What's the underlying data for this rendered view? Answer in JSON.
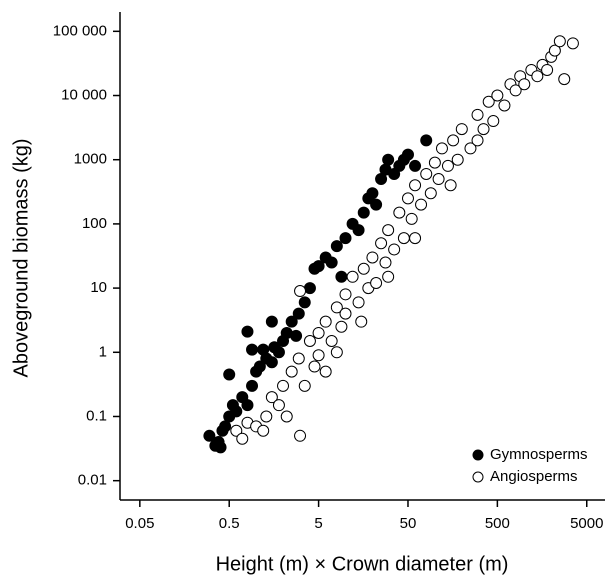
{
  "chart_data": {
    "type": "scatter",
    "xlabel": "Height (m) × Crown diameter (m)",
    "ylabel": "Aboveground biomass (kg)",
    "xscale": "log",
    "yscale": "log",
    "xlim": [
      0.03,
      8000
    ],
    "ylim": [
      0.005,
      200000
    ],
    "xticks": [
      0.05,
      0.5,
      5,
      50,
      500,
      5000
    ],
    "yticks": [
      0.01,
      0.1,
      1,
      10,
      100,
      1000,
      {
        "value": 10000,
        "label": "10 000"
      },
      {
        "value": 100000,
        "label": "100 000"
      }
    ],
    "legend": "lower right",
    "series": [
      {
        "name": "Gymnosperms",
        "color": "#000000",
        "x": [
          0.3,
          0.35,
          0.38,
          0.4,
          0.42,
          0.45,
          0.5,
          0.5,
          0.55,
          0.6,
          0.7,
          0.8,
          0.9,
          1,
          1.1,
          1.2,
          1.3,
          1.5,
          1.6,
          1.8,
          2,
          2.2,
          2.5,
          2.8,
          3,
          3.5,
          4,
          4.5,
          5,
          6,
          7,
          8,
          9,
          10,
          12,
          14,
          16,
          18,
          20,
          22,
          25,
          28,
          30,
          35,
          40,
          45,
          50,
          60,
          80,
          1.5,
          0.9,
          0.8
        ],
        "values": [
          0.05,
          0.035,
          0.04,
          0.033,
          0.06,
          0.07,
          0.1,
          0.45,
          0.15,
          0.12,
          0.2,
          0.15,
          0.3,
          0.5,
          0.6,
          1.1,
          0.8,
          0.7,
          1.2,
          1,
          1.5,
          2,
          3,
          1.8,
          4,
          6,
          10,
          20,
          22,
          30,
          25,
          45,
          15,
          60,
          100,
          80,
          150,
          250,
          300,
          200,
          500,
          700,
          1000,
          600,
          800,
          1000,
          1200,
          800,
          2000,
          3,
          1.1,
          2.1
        ]
      },
      {
        "name": "Angiosperms",
        "color": "#ffffff",
        "x": [
          0.6,
          0.7,
          0.8,
          1,
          1.2,
          1.3,
          1.5,
          1.8,
          2,
          2.2,
          2.5,
          3.1,
          3,
          3.5,
          4,
          4.5,
          5,
          5,
          6,
          7,
          8,
          9,
          10,
          10,
          12,
          14,
          16,
          18,
          20,
          22,
          25,
          28,
          30,
          35,
          40,
          45,
          50,
          55,
          60,
          70,
          80,
          90,
          100,
          110,
          120,
          140,
          160,
          180,
          200,
          250,
          300,
          350,
          400,
          450,
          500,
          600,
          700,
          800,
          900,
          1000,
          1200,
          1400,
          1600,
          1800,
          2000,
          2200,
          2500,
          3500,
          2800,
          3.1,
          6,
          8,
          15,
          30,
          60,
          150,
          300
        ],
        "values": [
          0.06,
          0.045,
          0.08,
          0.07,
          0.06,
          0.1,
          0.2,
          0.15,
          0.3,
          0.1,
          0.5,
          0.05,
          0.8,
          0.3,
          1.5,
          0.6,
          2,
          0.9,
          3,
          1.5,
          5,
          2.5,
          8,
          4,
          15,
          6,
          20,
          10,
          30,
          12,
          50,
          25,
          80,
          40,
          150,
          60,
          250,
          120,
          400,
          200,
          600,
          300,
          900,
          500,
          1500,
          800,
          2000,
          1000,
          3000,
          1500,
          5000,
          3000,
          8000,
          4000,
          10000,
          7000,
          15000,
          12000,
          20000,
          15000,
          25000,
          20000,
          30000,
          25000,
          40000,
          50000,
          70000,
          65000,
          18000,
          9,
          0.5,
          1,
          3,
          15,
          60,
          400,
          2000
        ]
      }
    ]
  }
}
